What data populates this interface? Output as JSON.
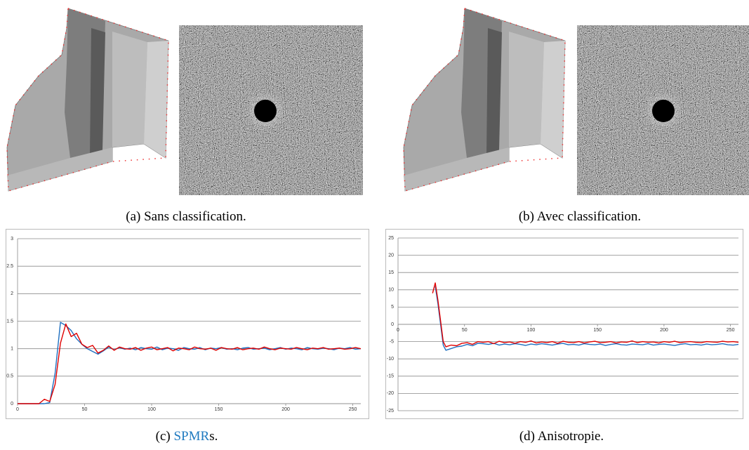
{
  "captions": [
    {
      "label": "(a)",
      "text": "Sans classification."
    },
    {
      "label": "(b)",
      "text": "Avec classification."
    },
    {
      "label": "(c)",
      "text": "SPMR",
      "suffix": "s."
    },
    {
      "label": "(d)",
      "text": "Anisotropie."
    }
  ],
  "chart_data": [
    {
      "type": "line",
      "xlim": [
        0,
        256
      ],
      "xticks": [
        0,
        50,
        100,
        150,
        200,
        250
      ],
      "ylim": [
        0,
        3
      ],
      "yticks": [
        0,
        0.5,
        1,
        1.5,
        2,
        2.5,
        3
      ],
      "grid": true,
      "x": [
        0,
        4,
        8,
        12,
        16,
        20,
        24,
        28,
        32,
        36,
        40,
        44,
        48,
        52,
        56,
        60,
        64,
        68,
        72,
        76,
        80,
        84,
        88,
        92,
        96,
        100,
        104,
        108,
        112,
        116,
        120,
        124,
        128,
        132,
        136,
        140,
        144,
        148,
        152,
        156,
        160,
        164,
        168,
        172,
        176,
        180,
        184,
        188,
        192,
        196,
        200,
        204,
        208,
        212,
        216,
        220,
        224,
        228,
        232,
        236,
        240,
        244,
        248,
        252,
        256
      ],
      "series": [
        {
          "color": "#1f6fc0",
          "values": [
            0,
            0,
            0,
            0,
            0,
            0,
            0.02,
            0.55,
            1.48,
            1.42,
            1.33,
            1.18,
            1.08,
            1.0,
            0.95,
            0.9,
            0.96,
            1.03,
            0.98,
            1.02,
            0.99,
            1.01,
            0.98,
            1.02,
            1.0,
            0.99,
            1.03,
            0.98,
            1.01,
            1.0,
            0.97,
            1.02,
            1.0,
            0.99,
            1.02,
            0.98,
            1.01,
            1.0,
            1.02,
            0.99,
            1.0,
            0.98,
            1.01,
            1.02,
            0.99,
            1.0,
            1.01,
            0.98,
            1.0,
            1.02,
            0.99,
            1.01,
            1.0,
            0.98,
            1.02,
            1.0,
            0.99,
            1.01,
            1.0,
            0.98,
            1.01,
            1.0,
            1.02,
            0.99,
            1.0
          ]
        },
        {
          "color": "#e00000",
          "values": [
            0,
            0,
            0,
            0,
            0,
            0.08,
            0.04,
            0.35,
            1.1,
            1.45,
            1.22,
            1.28,
            1.08,
            1.02,
            1.06,
            0.92,
            0.97,
            1.05,
            0.97,
            1.03,
            1.0,
            0.99,
            1.02,
            0.97,
            1.01,
            1.03,
            0.98,
            1.0,
            1.02,
            0.96,
            1.01,
            1.0,
            0.98,
            1.03,
            1.0,
            0.99,
            1.01,
            0.97,
            1.02,
            1.0,
            0.99,
            1.02,
            0.98,
            1.0,
            1.01,
            0.99,
            1.03,
            1.0,
            0.98,
            1.01,
            1.0,
            0.99,
            1.02,
            1.0,
            0.98,
            1.01,
            1.0,
            1.02,
            0.99,
            1.0,
            1.01,
            0.99,
            1.0,
            1.02,
            1.0
          ]
        }
      ]
    },
    {
      "type": "line",
      "xlim": [
        0,
        256
      ],
      "xticks": [
        0,
        50,
        100,
        150,
        200,
        250
      ],
      "ylim": [
        -25,
        25
      ],
      "yticks": [
        -25,
        -20,
        -15,
        -10,
        -5,
        0,
        5,
        10,
        15,
        20,
        25
      ],
      "grid": true,
      "x": [
        26,
        28,
        30,
        32,
        34,
        36,
        40,
        44,
        48,
        52,
        56,
        60,
        64,
        68,
        72,
        76,
        80,
        84,
        88,
        92,
        96,
        100,
        104,
        108,
        112,
        116,
        120,
        124,
        128,
        132,
        136,
        140,
        144,
        148,
        152,
        156,
        160,
        164,
        168,
        172,
        176,
        180,
        184,
        188,
        192,
        196,
        200,
        204,
        208,
        212,
        216,
        220,
        224,
        228,
        232,
        236,
        240,
        244,
        248,
        252,
        256
      ],
      "series": [
        {
          "color": "#1f6fc0",
          "values": [
            null,
            11,
            6,
            0,
            -6,
            -7.5,
            -7,
            -6.5,
            -6.3,
            -5.8,
            -6.2,
            -5.5,
            -5.6,
            -5.8,
            -5.5,
            -6.0,
            -5.7,
            -5.9,
            -5.6,
            -5.8,
            -6.1,
            -5.7,
            -5.9,
            -5.6,
            -5.8,
            -6.0,
            -5.7,
            -5.5,
            -5.9,
            -5.8,
            -6.0,
            -5.6,
            -5.8,
            -5.9,
            -5.7,
            -6.1,
            -5.8,
            -5.6,
            -5.9,
            -6.0,
            -5.7,
            -5.8,
            -5.9,
            -5.6,
            -6.0,
            -5.8,
            -5.7,
            -5.9,
            -6.1,
            -5.8,
            -5.6,
            -5.9,
            -5.8,
            -6.0,
            -5.7,
            -5.9,
            -5.8,
            -5.6,
            -5.9,
            -6.0,
            -5.8
          ]
        },
        {
          "color": "#e00000",
          "values": [
            9,
            12,
            7,
            1,
            -5,
            -6.5,
            -6,
            -6.2,
            -5.5,
            -5.3,
            -5.8,
            -5,
            -5.2,
            -5.0,
            -5.6,
            -4.9,
            -5.3,
            -5.1,
            -5.5,
            -5.0,
            -5.2,
            -4.8,
            -5.4,
            -5.1,
            -5.3,
            -5.0,
            -5.5,
            -4.9,
            -5.2,
            -5.3,
            -5.0,
            -5.4,
            -5.1,
            -4.9,
            -5.3,
            -5.2,
            -5.0,
            -5.4,
            -5.1,
            -5.2,
            -4.8,
            -5.3,
            -5.0,
            -5.2,
            -5.1,
            -5.4,
            -5.0,
            -5.2,
            -4.9,
            -5.3,
            -5.1,
            -5.0,
            -5.2,
            -5.3,
            -5.0,
            -5.1,
            -5.2,
            -4.9,
            -5.1,
            -5.0,
            -5.2
          ]
        }
      ]
    }
  ]
}
